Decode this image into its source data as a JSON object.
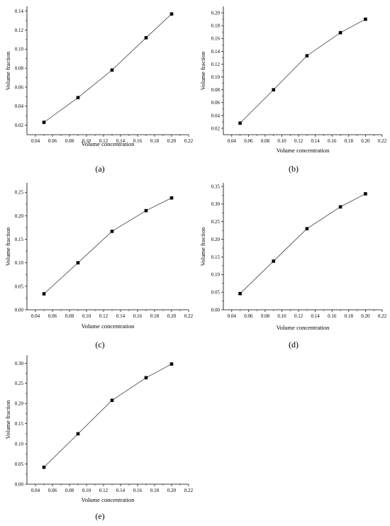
{
  "chart_data": [
    {
      "type": "line",
      "caption": "(a)",
      "xlabel": "Volume concentration",
      "ylabel": "Volume  fraction",
      "x": [
        0.05,
        0.09,
        0.13,
        0.17,
        0.2
      ],
      "series": [
        {
          "values": [
            0.023,
            0.049,
            0.078,
            0.112,
            0.137
          ]
        }
      ],
      "xlim": [
        0.03,
        0.22
      ],
      "ylim": [
        0.01,
        0.145
      ],
      "xticks": [
        0.04,
        0.06,
        0.08,
        0.1,
        0.12,
        0.14,
        0.16,
        0.18,
        0.2,
        0.22
      ],
      "xtick_labels": [
        "0.04",
        "0.06",
        "0.08",
        "0.10",
        "0.12",
        "0.14",
        "0.16",
        "0.18",
        "0.20",
        "0.22"
      ],
      "yticks": [
        0.02,
        0.04,
        0.06,
        0.08,
        0.1,
        0.12,
        0.14
      ],
      "ytick_labels": [
        "0.02",
        "0.04",
        "0.06",
        "0.08",
        "0.10",
        "0.12",
        "0.14"
      ],
      "grid": false
    },
    {
      "type": "line",
      "caption": "(b)",
      "xlabel": "Volume concentration",
      "ylabel": "Volume  fraction",
      "x": [
        0.05,
        0.09,
        0.13,
        0.17,
        0.2
      ],
      "series": [
        {
          "values": [
            0.028,
            0.08,
            0.133,
            0.169,
            0.19
          ]
        }
      ],
      "xlim": [
        0.03,
        0.22
      ],
      "ylim": [
        0.01,
        0.21
      ],
      "xticks": [
        0.04,
        0.06,
        0.08,
        0.1,
        0.12,
        0.14,
        0.16,
        0.18,
        0.2,
        0.22
      ],
      "xtick_labels": [
        "0.04",
        "0.06",
        "0.08",
        "0.10",
        "0.12",
        "0.14",
        "0.16",
        "0.18",
        "0.20",
        "0.22"
      ],
      "yticks": [
        0.02,
        0.04,
        0.06,
        0.08,
        0.1,
        0.12,
        0.14,
        0.16,
        0.18,
        0.2
      ],
      "ytick_labels": [
        "0.02",
        "0.04",
        "0.06",
        "0.08",
        "0.10",
        "0.12",
        "0.14",
        "0.16",
        "0.18",
        "0.20"
      ],
      "grid": false
    },
    {
      "type": "line",
      "caption": "(c)",
      "xlabel": "Volume concentration",
      "ylabel": "Volume  fraction",
      "x": [
        0.05,
        0.09,
        0.13,
        0.17,
        0.2
      ],
      "series": [
        {
          "values": [
            0.034,
            0.1,
            0.167,
            0.211,
            0.238
          ]
        }
      ],
      "xlim": [
        0.03,
        0.22
      ],
      "ylim": [
        0.0,
        0.27
      ],
      "xticks": [
        0.04,
        0.06,
        0.08,
        0.1,
        0.12,
        0.14,
        0.16,
        0.18,
        0.2,
        0.22
      ],
      "xtick_labels": [
        "0.04",
        "0.06",
        "0.08",
        "0.10",
        "0.12",
        "0.14",
        "0.16",
        "0.18",
        "0.20",
        "0.22"
      ],
      "yticks": [
        0.0,
        0.05,
        0.1,
        0.15,
        0.2,
        0.25
      ],
      "ytick_labels": [
        "0.00",
        "0.05",
        "0.10",
        "0.15",
        "0.20",
        "0.25"
      ],
      "grid": false
    },
    {
      "type": "line",
      "caption": "(d)",
      "xlabel": "Volume concentration",
      "ylabel": "Volume  fraction",
      "x": [
        0.05,
        0.09,
        0.13,
        0.17,
        0.2
      ],
      "series": [
        {
          "values": [
            0.046,
            0.138,
            0.23,
            0.292,
            0.329
          ]
        }
      ],
      "xlim": [
        0.03,
        0.22
      ],
      "ylim": [
        0.0,
        0.36
      ],
      "xticks": [
        0.04,
        0.06,
        0.08,
        0.1,
        0.12,
        0.14,
        0.16,
        0.18,
        0.2,
        0.22
      ],
      "xtick_labels": [
        "0.04",
        "0.06",
        "0.08",
        "0.10",
        "0.12",
        "0.14",
        "0.16",
        "0.18",
        "0.20",
        "0.22"
      ],
      "yticks": [
        0.0,
        0.05,
        0.1,
        0.15,
        0.2,
        0.25,
        0.3,
        0.35
      ],
      "ytick_labels": [
        "0.00",
        "0.05",
        "0.10",
        "0.15",
        "0.20",
        "0.25",
        "0.30",
        "0.35"
      ],
      "grid": false
    },
    {
      "type": "line",
      "caption": "(e)",
      "xlabel": "Volume concentration",
      "ylabel": "Volume  fraction",
      "x": [
        0.05,
        0.09,
        0.13,
        0.17,
        0.2
      ],
      "series": [
        {
          "values": [
            0.042,
            0.125,
            0.208,
            0.264,
            0.298
          ]
        }
      ],
      "xlim": [
        0.03,
        0.22
      ],
      "ylim": [
        0.0,
        0.32
      ],
      "xticks": [
        0.04,
        0.06,
        0.08,
        0.1,
        0.12,
        0.14,
        0.16,
        0.18,
        0.2,
        0.22
      ],
      "xtick_labels": [
        "0.04",
        "0.06",
        "0.08",
        "0.10",
        "0.12",
        "0.14",
        "0.16",
        "0.18",
        "0.20",
        "0.22"
      ],
      "yticks": [
        0.0,
        0.05,
        0.1,
        0.15,
        0.2,
        0.25,
        0.3
      ],
      "ytick_labels": [
        "0.00",
        "0.05",
        "0.10",
        "0.15",
        "0.20",
        "0.25",
        "0.30"
      ],
      "grid": false
    }
  ]
}
